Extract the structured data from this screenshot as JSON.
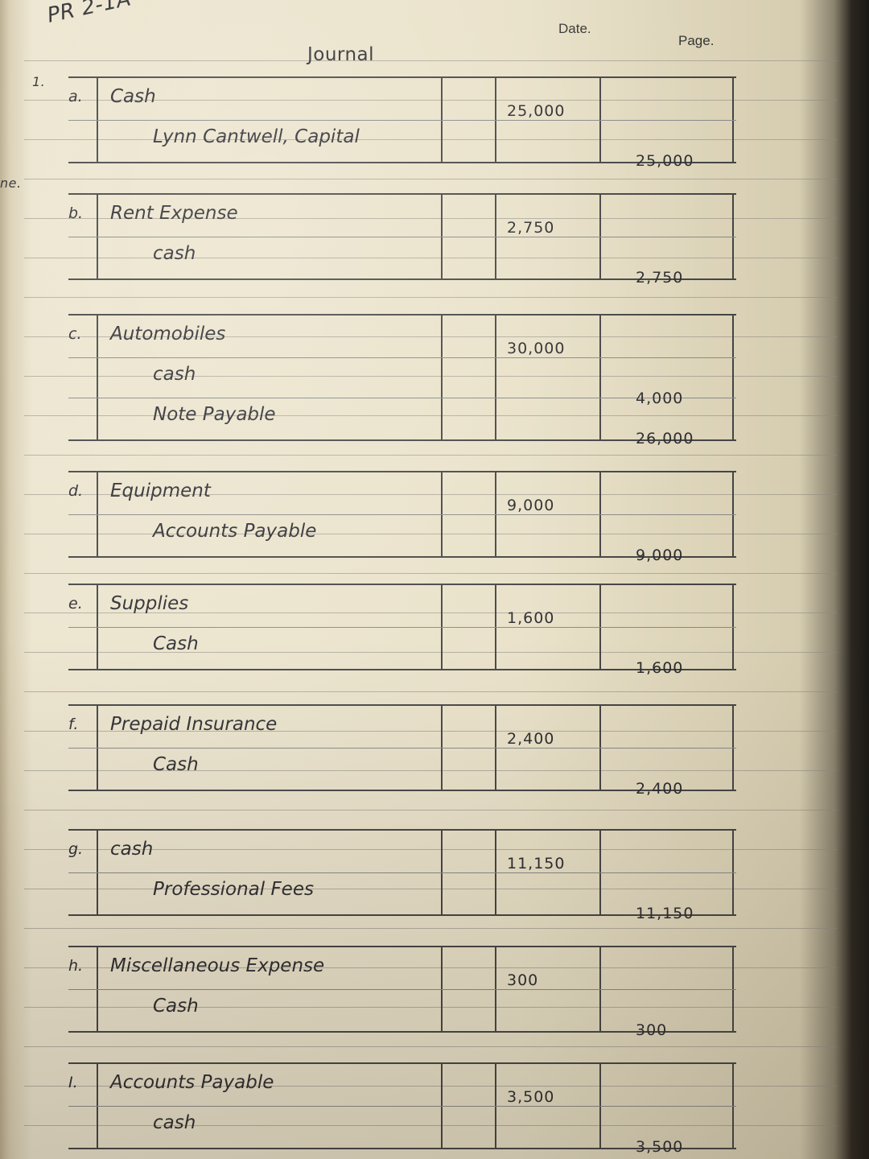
{
  "header": {
    "problem": "PR 2-1A",
    "date_label": "Date.",
    "page_label": "Page.",
    "title": "Journal",
    "part": "1."
  },
  "entries": [
    {
      "letter": "a.",
      "lines": [
        {
          "account": "Cash",
          "debit": "25,000",
          "credit": ""
        },
        {
          "account": "Lynn Cantwell, Capital",
          "debit": "",
          "credit": "25,000"
        }
      ]
    },
    {
      "letter": "b.",
      "lines": [
        {
          "account": "Rent Expense",
          "debit": "2,750",
          "credit": ""
        },
        {
          "account": "cash",
          "debit": "",
          "credit": "2,750"
        }
      ]
    },
    {
      "letter": "c.",
      "lines": [
        {
          "account": "Automobiles",
          "debit": "30,000",
          "credit": ""
        },
        {
          "account": "cash",
          "debit": "",
          "credit": "4,000"
        },
        {
          "account": "Note Payable",
          "debit": "",
          "credit": "26,000"
        }
      ]
    },
    {
      "letter": "d.",
      "lines": [
        {
          "account": "Equipment",
          "debit": "9,000",
          "credit": ""
        },
        {
          "account": "Accounts Payable",
          "debit": "",
          "credit": "9,000"
        }
      ]
    },
    {
      "letter": "e.",
      "lines": [
        {
          "account": "Supplies",
          "debit": "1,600",
          "credit": ""
        },
        {
          "account": "Cash",
          "debit": "",
          "credit": "1,600"
        }
      ]
    },
    {
      "letter": "f.",
      "lines": [
        {
          "account": "Prepaid Insurance",
          "debit": "2,400",
          "credit": ""
        },
        {
          "account": "Cash",
          "debit": "",
          "credit": "2,400"
        }
      ]
    },
    {
      "letter": "g.",
      "lines": [
        {
          "account": "cash",
          "debit": "11,150",
          "credit": ""
        },
        {
          "account": "Professional Fees",
          "debit": "",
          "credit": "11,150"
        }
      ]
    },
    {
      "letter": "h.",
      "lines": [
        {
          "account": "Miscellaneous Expense",
          "debit": "300",
          "credit": ""
        },
        {
          "account": "Cash",
          "debit": "",
          "credit": "300"
        }
      ]
    },
    {
      "letter": "I.",
      "lines": [
        {
          "account": "Accounts Payable",
          "debit": "3,500",
          "credit": ""
        },
        {
          "account": "cash",
          "debit": "",
          "credit": "3,500"
        }
      ]
    }
  ],
  "margin_text": "ne."
}
